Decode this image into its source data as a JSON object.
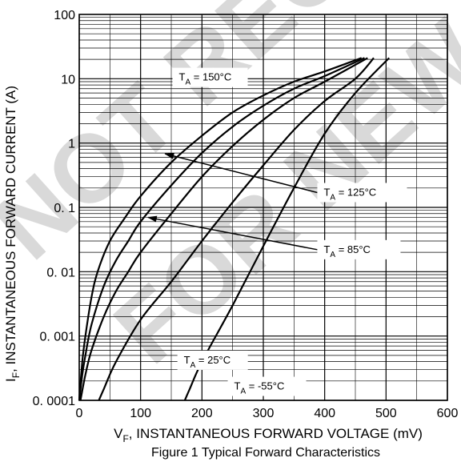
{
  "chart_data": {
    "type": "line",
    "title": "",
    "caption": "Figure 1 Typical Forward Characteristics",
    "xlabel": {
      "sym": "V",
      "sub": "F",
      "text": ", INSTANTANEOUS FORWARD VOLTAGE (mV)"
    },
    "ylabel": {
      "sym": "I",
      "sub": "F",
      "text": ", INSTANTANEOUS FORWARD CURRENT (A)"
    },
    "xlim": [
      0,
      600
    ],
    "ylim": [
      0.0001,
      100
    ],
    "yscale": "log",
    "x_ticks": [
      {
        "value": 0,
        "label": "0"
      },
      {
        "value": 100,
        "label": "100"
      },
      {
        "value": 200,
        "label": "200"
      },
      {
        "value": 300,
        "label": "300"
      },
      {
        "value": 400,
        "label": "400"
      },
      {
        "value": 500,
        "label": "500"
      },
      {
        "value": 600,
        "label": "600"
      }
    ],
    "y_ticks": [
      {
        "value": 100,
        "label": "100"
      },
      {
        "value": 10,
        "label": "10"
      },
      {
        "value": 1,
        "label": "1"
      },
      {
        "value": 0.1,
        "label": "0. 1"
      },
      {
        "value": 0.01,
        "label": "0. 01"
      },
      {
        "value": 0.001,
        "label": "0. 001"
      },
      {
        "value": 0.0001,
        "label": "0. 0001"
      }
    ],
    "grid": true,
    "series": [
      {
        "name": "T_A = 150°C",
        "label_main": "T",
        "label_sub": "A",
        "label_rest": " = 150°C",
        "x": [
          0,
          5,
          10,
          20,
          30,
          50,
          75,
          100,
          150,
          200,
          250,
          300,
          350,
          400,
          460
        ],
        "y": [
          0.0001,
          0.0004,
          0.001,
          0.004,
          0.01,
          0.03,
          0.07,
          0.15,
          0.5,
          1.3,
          3.0,
          5.5,
          9.0,
          13.0,
          21.0
        ]
      },
      {
        "name": "T_A = 125°C",
        "label_main": "T",
        "label_sub": "A",
        "label_rest": " = 125°C",
        "x": [
          0,
          5,
          10,
          20,
          40,
          60,
          80,
          100,
          150,
          200,
          250,
          300,
          350,
          400,
          465
        ],
        "y": [
          0.0001,
          0.00025,
          0.0005,
          0.0015,
          0.006,
          0.015,
          0.03,
          0.06,
          0.22,
          0.7,
          1.8,
          3.8,
          7.0,
          11.0,
          21.0
        ]
      },
      {
        "name": "T_A = 85°C",
        "label_main": "T",
        "label_sub": "A",
        "label_rest": " = 85°C",
        "x": [
          2,
          10,
          20,
          40,
          60,
          80,
          100,
          150,
          200,
          250,
          300,
          350,
          400,
          470
        ],
        "y": [
          0.0001,
          0.00025,
          0.0006,
          0.002,
          0.005,
          0.01,
          0.02,
          0.08,
          0.3,
          0.9,
          2.3,
          5.0,
          9.0,
          21.0
        ]
      },
      {
        "name": "T_A = 25°C",
        "label_main": "T",
        "label_sub": "A",
        "label_rest": " = 25°C",
        "x": [
          32,
          40,
          60,
          100,
          150,
          200,
          250,
          300,
          350,
          400,
          450,
          480
        ],
        "y": [
          0.0001,
          0.00015,
          0.0004,
          0.0018,
          0.007,
          0.03,
          0.12,
          0.45,
          1.6,
          4.5,
          10.0,
          21.0
        ]
      },
      {
        "name": "T_A = -55°C",
        "label_main": "T",
        "label_sub": "A",
        "label_rest": " = -55°C",
        "x": [
          172,
          180,
          200,
          250,
          300,
          350,
          400,
          450,
          505
        ],
        "y": [
          0.0001,
          0.00015,
          0.0004,
          0.003,
          0.025,
          0.2,
          1.4,
          6.0,
          21.0
        ]
      }
    ],
    "annotations": [
      {
        "series": 0,
        "tx": 152,
        "ty": 10.5,
        "box_w": 94,
        "anchor": "label"
      },
      {
        "series": 1,
        "tx": 388,
        "ty": 0.17,
        "box_w": 112,
        "anchor": "label",
        "arrow_to": [
          140,
          0.68
        ]
      },
      {
        "series": 2,
        "tx": 388,
        "ty": 0.022,
        "box_w": 104,
        "anchor": "label",
        "arrow_to": [
          112,
          0.07
        ]
      },
      {
        "series": 3,
        "tx": 160,
        "ty": 0.00042,
        "box_w": 88,
        "anchor": "label"
      },
      {
        "series": 4,
        "tx": 242,
        "ty": 0.000165,
        "box_w": 98,
        "anchor": "label"
      }
    ],
    "watermark": [
      "NOT RECOMMENDED",
      "FOR NEW DESIGNS"
    ]
  }
}
